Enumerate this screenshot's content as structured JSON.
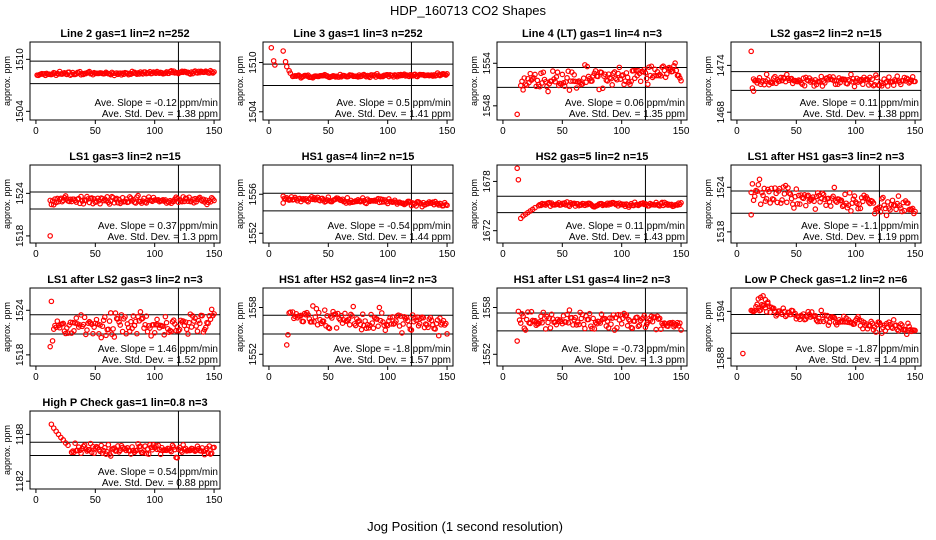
{
  "figure": {
    "title": "HDP_160713  CO2 Shapes",
    "xlabel": "Jog Position (1 second resolution)"
  },
  "style": {
    "point_color": "#ff0000",
    "axis_color": "#000000"
  },
  "chart_data": [
    {
      "type": "scatter",
      "title": "Line 2 gas=1 lin=2 n=252",
      "ylabel": "approx. ppm",
      "xlim": [
        -5,
        155
      ],
      "ylim": [
        1503,
        1512
      ],
      "yticks": [
        1504,
        1510
      ],
      "xticks": [
        0,
        50,
        100,
        150
      ],
      "vline": 120,
      "hlines": [
        1507.2,
        1509.8
      ],
      "slope_text": "Ave. Slope = -0.12  ppm/min",
      "std_text": "Ave. Std. Dev. = 1.38  ppm",
      "points_x_range": [
        1,
        150
      ],
      "trend_start": 1508.3,
      "trend_end": 1508.5,
      "noise": 0.12,
      "outliers": []
    },
    {
      "type": "scatter",
      "title": "Line 3 gas=1 lin=3 n=252",
      "ylabel": "approx. ppm",
      "xlim": [
        -5,
        155
      ],
      "ylim": [
        1503,
        1512.5
      ],
      "yticks": [
        1504,
        1510
      ],
      "xticks": [
        0,
        50,
        100,
        150
      ],
      "vline": 120,
      "hlines": [
        1507.2,
        1509.8
      ],
      "slope_text": "Ave. Slope = 0.5  ppm/min",
      "std_text": "Ave. Std. Dev. = 1.41  ppm",
      "points_x_range": [
        20,
        150
      ],
      "trend_start": 1508.3,
      "trend_end": 1508.5,
      "noise": 0.12,
      "outliers": [
        [
          2,
          1511.8
        ],
        [
          4,
          1510.2
        ],
        [
          5,
          1509.7
        ],
        [
          12,
          1511.4
        ],
        [
          14,
          1510.1
        ],
        [
          15,
          1509.5
        ],
        [
          17,
          1509.0
        ],
        [
          18,
          1508.7
        ]
      ]
    },
    {
      "type": "scatter",
      "title": "Line 4 (LT) gas=1 lin=4 n=3",
      "ylabel": "approx. ppm",
      "xlim": [
        -5,
        155
      ],
      "ylim": [
        1546,
        1557
      ],
      "yticks": [
        1548,
        1554
      ],
      "xticks": [
        0,
        50,
        100,
        150
      ],
      "vline": 120,
      "hlines": [
        1550.6,
        1553.4
      ],
      "slope_text": "Ave. Slope = 0.06  ppm/min",
      "std_text": "Ave. Std. Dev. = 1.35  ppm",
      "points_x_range": [
        15,
        150
      ],
      "trend_start": 1551.3,
      "trend_end": 1552.7,
      "noise": 0.9,
      "outliers": [
        [
          12,
          1546.8
        ]
      ]
    },
    {
      "type": "scatter",
      "title": "LS2 gas=2 lin=2 n=15",
      "ylabel": "approx. ppm",
      "xlim": [
        -5,
        155
      ],
      "ylim": [
        1467,
        1477
      ],
      "yticks": [
        1468,
        1474
      ],
      "xticks": [
        0,
        50,
        100,
        150
      ],
      "vline": 120,
      "hlines": [
        1470.8,
        1473.2
      ],
      "slope_text": "Ave. Slope = 0.11  ppm/min",
      "std_text": "Ave. Std. Dev. = 1.38  ppm",
      "points_x_range": [
        14,
        150
      ],
      "trend_start": 1472.0,
      "trend_end": 1472.0,
      "noise": 0.45,
      "outliers": [
        [
          12,
          1475.8
        ],
        [
          13,
          1471.1
        ],
        [
          14,
          1470.7
        ]
      ]
    },
    {
      "type": "scatter",
      "title": "LS1 gas=3 lin=2 n=15",
      "ylabel": "approx. ppm",
      "xlim": [
        -5,
        155
      ],
      "ylim": [
        1517,
        1528
      ],
      "yticks": [
        1518,
        1524
      ],
      "xticks": [
        0,
        50,
        100,
        150
      ],
      "vline": 120,
      "hlines": [
        1521.8,
        1524.2
      ],
      "slope_text": "Ave. Slope = 0.37  ppm/min",
      "std_text": "Ave. Std. Dev. = 1.3  ppm",
      "points_x_range": [
        12,
        150
      ],
      "trend_start": 1523.0,
      "trend_end": 1523.0,
      "noise": 0.35,
      "outliers": [
        [
          12,
          1518.0
        ]
      ]
    },
    {
      "type": "scatter",
      "title": "HS1 gas=4 lin=2 n=15",
      "ylabel": "approx. ppm",
      "xlim": [
        -5,
        155
      ],
      "ylim": [
        1551,
        1559
      ],
      "yticks": [
        1552,
        1556
      ],
      "xticks": [
        0,
        50,
        100,
        150
      ],
      "vline": 120,
      "hlines": [
        1554.3,
        1556.1
      ],
      "slope_text": "Ave. Slope = -0.54  ppm/min",
      "std_text": "Ave. Std. Dev. = 1.44  ppm",
      "points_x_range": [
        12,
        150
      ],
      "trend_start": 1555.6,
      "trend_end": 1555.0,
      "noise": 0.18,
      "outliers": [
        [
          12,
          1555.1
        ]
      ]
    },
    {
      "type": "scatter",
      "title": "HS2 gas=5 lin=2 n=15",
      "ylabel": "approx. ppm",
      "xlim": [
        -5,
        155
      ],
      "ylim": [
        1670.5,
        1680
      ],
      "yticks": [
        1672,
        1678
      ],
      "xticks": [
        0,
        50,
        100,
        150
      ],
      "vline": 120,
      "hlines": [
        1674.2,
        1676.2
      ],
      "slope_text": "Ave. Slope = 0.11  ppm/min",
      "std_text": "Ave. Std. Dev. = 1.43  ppm",
      "points_x_range": [
        30,
        150
      ],
      "trend_start": 1675.2,
      "trend_end": 1675.2,
      "noise": 0.15,
      "outliers": [
        [
          12,
          1679.6
        ],
        [
          13,
          1678.2
        ],
        [
          15,
          1673.5
        ],
        [
          17,
          1673.8
        ],
        [
          19,
          1674.0
        ],
        [
          21,
          1674.2
        ],
        [
          23,
          1674.4
        ],
        [
          25,
          1674.6
        ],
        [
          27,
          1674.8
        ]
      ]
    },
    {
      "type": "scatter",
      "title": "LS1 after HS1 gas=3 lin=2 n=3",
      "ylabel": "approx. ppm",
      "xlim": [
        -5,
        155
      ],
      "ylim": [
        1516.5,
        1527
      ],
      "yticks": [
        1518,
        1524
      ],
      "xticks": [
        0,
        50,
        100,
        150
      ],
      "vline": 120,
      "hlines": [
        1520.5,
        1523.5
      ],
      "slope_text": "Ave. Slope = -1.1  ppm/min",
      "std_text": "Ave. Std. Dev. = 1.19  ppm",
      "points_x_range": [
        12,
        150
      ],
      "trend_start": 1523.3,
      "trend_end": 1521.2,
      "noise": 0.9,
      "outliers": [
        [
          12,
          1520.3
        ]
      ]
    },
    {
      "type": "scatter",
      "title": "LS1 after LS2 gas=3 lin=2 n=3",
      "ylabel": "approx. ppm",
      "xlim": [
        -5,
        155
      ],
      "ylim": [
        1516.5,
        1527
      ],
      "yticks": [
        1518,
        1524
      ],
      "xticks": [
        0,
        50,
        100,
        150
      ],
      "vline": 120,
      "hlines": [
        1520.8,
        1523.4
      ],
      "slope_text": "Ave. Slope = 1.46  ppm/min",
      "std_text": "Ave. Std. Dev. = 1.52  ppm",
      "points_x_range": [
        14,
        150
      ],
      "trend_start": 1521.8,
      "trend_end": 1522.5,
      "noise": 0.9,
      "outliers": [
        [
          12,
          1519.1
        ],
        [
          13,
          1525.2
        ]
      ]
    },
    {
      "type": "scatter",
      "title": "HS1 after HS2 gas=4 lin=2 n=3",
      "ylabel": "approx. ppm",
      "xlim": [
        -5,
        155
      ],
      "ylim": [
        1550.5,
        1560.5
      ],
      "yticks": [
        1552,
        1558
      ],
      "xticks": [
        0,
        50,
        100,
        150
      ],
      "vline": 120,
      "hlines": [
        1554.6,
        1557.0
      ],
      "slope_text": "Ave. Slope = -1.8  ppm/min",
      "std_text": "Ave. Std. Dev. = 1.57  ppm",
      "points_x_range": [
        20,
        150
      ],
      "trend_start": 1557.0,
      "trend_end": 1555.6,
      "noise": 0.8,
      "outliers": [
        [
          15,
          1553.2
        ],
        [
          16,
          1554.5
        ],
        [
          17,
          1557.3
        ],
        [
          18,
          1557.4
        ]
      ]
    },
    {
      "type": "scatter",
      "title": "HS1 after LS1 gas=4 lin=2 n=3",
      "ylabel": "approx. ppm",
      "xlim": [
        -5,
        155
      ],
      "ylim": [
        1550.5,
        1560.5
      ],
      "yticks": [
        1552,
        1558
      ],
      "xticks": [
        0,
        50,
        100,
        150
      ],
      "vline": 120,
      "hlines": [
        1555.0,
        1557.3
      ],
      "slope_text": "Ave. Slope = -0.73  ppm/min",
      "std_text": "Ave. Std. Dev. = 1.3  ppm",
      "points_x_range": [
        14,
        150
      ],
      "trend_start": 1556.4,
      "trend_end": 1556.0,
      "noise": 0.7,
      "outliers": [
        [
          12,
          1553.7
        ],
        [
          13,
          1557.5
        ]
      ]
    },
    {
      "type": "scatter",
      "title": "Low P Check gas=1.2 lin=2 n=6",
      "ylabel": "approx. ppm",
      "xlim": [
        -5,
        155
      ],
      "ylim": [
        1587,
        1597
      ],
      "yticks": [
        1588,
        1594
      ],
      "xticks": [
        0,
        50,
        100,
        150
      ],
      "vline": 120,
      "hlines": [
        1591.2,
        1593.6
      ],
      "slope_text": "Ave. Slope = -1.87  ppm/min",
      "std_text": "Ave. Std. Dev. = 1.4  ppm",
      "points_x_range": [
        12,
        150
      ],
      "trend_start": 1594.4,
      "trend_end": 1591.6,
      "noise": 0.5,
      "outliers": [
        [
          5,
          1588.6
        ],
        [
          18,
          1595.6
        ],
        [
          20,
          1595.8
        ],
        [
          22,
          1596.0
        ],
        [
          24,
          1595.5
        ],
        [
          26,
          1595.2
        ]
      ]
    },
    {
      "type": "scatter",
      "title": "High P Check gas=1 lin=0.8 n=3",
      "ylabel": "approx. ppm",
      "xlim": [
        -5,
        155
      ],
      "ylim": [
        1181,
        1191
      ],
      "yticks": [
        1182,
        1188
      ],
      "xticks": [
        0,
        50,
        100,
        150
      ],
      "vline": 120,
      "hlines": [
        1185.3,
        1187.0
      ],
      "slope_text": "Ave. Slope = 0.54  ppm/min",
      "std_text": "Ave. Std. Dev. = 0.88  ppm",
      "points_x_range": [
        30,
        150
      ],
      "trend_start": 1186.2,
      "trend_end": 1186.0,
      "noise": 0.45,
      "outliers": [
        [
          13,
          1189.3
        ],
        [
          15,
          1188.8
        ],
        [
          17,
          1188.4
        ],
        [
          19,
          1188.0
        ],
        [
          21,
          1187.6
        ],
        [
          23,
          1187.3
        ],
        [
          25,
          1186.9
        ],
        [
          27,
          1186.6
        ]
      ]
    }
  ]
}
